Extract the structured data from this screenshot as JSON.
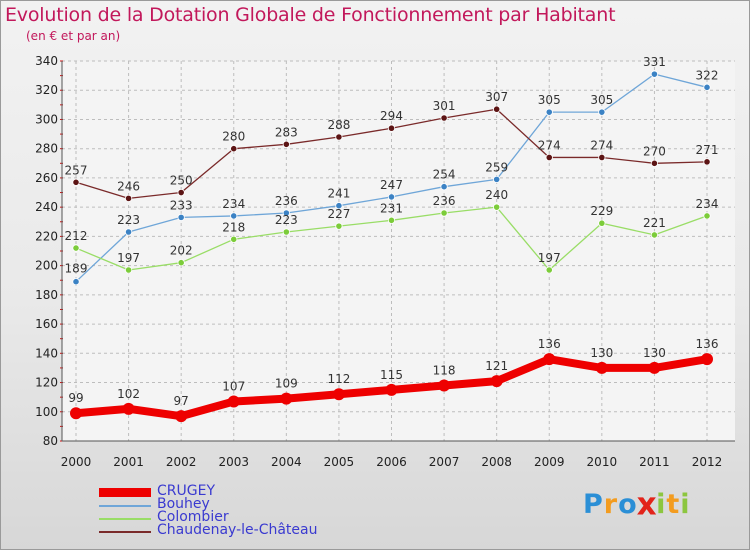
{
  "title": "Evolution de la Dotation Globale de Fonctionnement par Habitant",
  "subtitle": "(en € et par an)",
  "logo": {
    "letters": [
      "P",
      "r",
      "o",
      "x",
      "i",
      "t",
      "i"
    ],
    "colors": [
      "#2b8fd6",
      "#f39c1f",
      "#2b8fd6",
      "#e2231a",
      "#8cc63f",
      "#f39c1f",
      "#8cc63f"
    ]
  },
  "chart_data": {
    "type": "line",
    "title": "Evolution de la Dotation Globale de Fonctionnement par Habitant",
    "ylabel": "(en € et par an)",
    "xlabel": "",
    "x": [
      "2000",
      "2001",
      "2002",
      "2003",
      "2004",
      "2005",
      "2006",
      "2007",
      "2008",
      "2009",
      "2010",
      "2011",
      "2012"
    ],
    "ylim": [
      80,
      340
    ],
    "yticks": [
      80,
      100,
      120,
      140,
      160,
      180,
      200,
      220,
      240,
      260,
      280,
      300,
      320,
      340
    ],
    "grid": true,
    "legend_position": "bottom-left",
    "series": [
      {
        "name": "CRUGEY",
        "values": [
          99,
          102,
          97,
          107,
          109,
          112,
          115,
          118,
          121,
          136,
          130,
          130,
          136
        ],
        "color": "#ee0000",
        "bold": true
      },
      {
        "name": "Bouhey",
        "values": [
          189,
          223,
          233,
          234,
          236,
          241,
          247,
          254,
          259,
          305,
          305,
          331,
          322
        ],
        "color": "#6fa6d8",
        "marker": "#3b82c4"
      },
      {
        "name": "Colombier",
        "values": [
          212,
          197,
          202,
          218,
          223,
          227,
          231,
          236,
          240,
          197,
          229,
          221,
          234
        ],
        "color": "#99dd66",
        "marker": "#7ccc3a"
      },
      {
        "name": "Chaudenay-le-Château",
        "values": [
          257,
          246,
          250,
          280,
          283,
          288,
          294,
          301,
          307,
          274,
          274,
          270,
          271
        ],
        "color": "#7a2a2a",
        "marker": "#5c1414"
      }
    ]
  }
}
